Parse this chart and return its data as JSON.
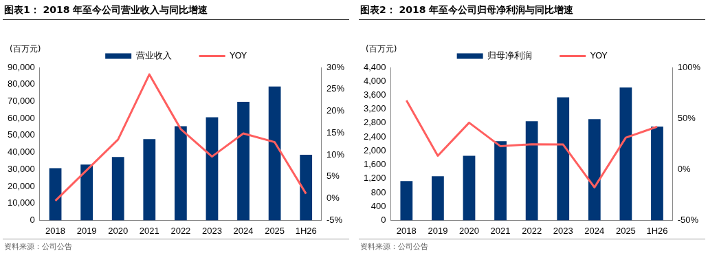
{
  "chart_data": [
    {
      "type": "bar",
      "title": "图表1：  2018 年至今公司营业收入与同比增速",
      "ylabel": "(百万元)",
      "annotations": [
        "资料来源：公司公告"
      ],
      "categories": [
        "2018",
        "2019",
        "2020",
        "2021",
        "2022",
        "2023",
        "2024",
        "2025",
        "1H26"
      ],
      "series": [
        {
          "name": "营业收入",
          "color": "#003676",
          "values": [
            30700,
            32800,
            37300,
            47800,
            55400,
            60700,
            69800,
            78800,
            38600
          ]
        },
        {
          "name": "YOY",
          "type": "line",
          "axis": "y2",
          "color": "#ff5f5f",
          "values": [
            -0.5,
            6.5,
            13.5,
            28.4,
            15.9,
            9.6,
            14.9,
            12.9,
            1.1
          ]
        }
      ],
      "ylim": [
        0,
        90000
      ],
      "yticks": [
        {
          "value": 0,
          "label": "0"
        },
        {
          "value": 10000,
          "label": "10,000"
        },
        {
          "value": 20000,
          "label": "20,000"
        },
        {
          "value": 30000,
          "label": "30,000"
        },
        {
          "value": 40000,
          "label": "40,000"
        },
        {
          "value": 50000,
          "label": "50,000"
        },
        {
          "value": 60000,
          "label": "60,000"
        },
        {
          "value": 70000,
          "label": "70,000"
        },
        {
          "value": 80000,
          "label": "80,000"
        },
        {
          "value": 90000,
          "label": "90,000"
        }
      ],
      "y2lim": [
        -5,
        30
      ],
      "y2ticks": [
        {
          "value": -5,
          "label": "-5%"
        },
        {
          "value": 0,
          "label": "0%"
        },
        {
          "value": 5,
          "label": "5%"
        },
        {
          "value": 10,
          "label": "10%"
        },
        {
          "value": 15,
          "label": "15%"
        },
        {
          "value": 20,
          "label": "20%"
        },
        {
          "value": 25,
          "label": "25%"
        },
        {
          "value": 30,
          "label": "30%"
        }
      ],
      "grid": false,
      "legend": "top",
      "marker": "none",
      "line_style": "solid"
    },
    {
      "type": "bar",
      "title": "图表2：  2018 年至今公司归母净利润与同比增速",
      "ylabel": "(百万元)",
      "annotations": [
        "资料来源：公司公告"
      ],
      "categories": [
        "2018",
        "2019",
        "2020",
        "2021",
        "2022",
        "2023",
        "2024",
        "2025",
        "1H26"
      ],
      "series": [
        {
          "name": "归母净利润",
          "color": "#003676",
          "values": [
            1130,
            1270,
            1860,
            2280,
            2850,
            3540,
            2910,
            3820,
            2700
          ]
        },
        {
          "name": "YOY",
          "type": "line",
          "axis": "y2",
          "color": "#ff5f5f",
          "values": [
            67.6,
            13.3,
            45.8,
            22.7,
            24.7,
            24.4,
            -17.6,
            31.1,
            41.8
          ]
        }
      ],
      "ylim": [
        0,
        4400
      ],
      "yticks": [
        {
          "value": 0,
          "label": "0"
        },
        {
          "value": 400,
          "label": "400"
        },
        {
          "value": 800,
          "label": "800"
        },
        {
          "value": 1200,
          "label": "1,200"
        },
        {
          "value": 1600,
          "label": "1,600"
        },
        {
          "value": 2000,
          "label": "2,000"
        },
        {
          "value": 2400,
          "label": "2,400"
        },
        {
          "value": 2800,
          "label": "2,800"
        },
        {
          "value": 3200,
          "label": "3,200"
        },
        {
          "value": 3600,
          "label": "3,600"
        },
        {
          "value": 4000,
          "label": "4,000"
        },
        {
          "value": 4400,
          "label": "4,400"
        }
      ],
      "y2lim": [
        -50,
        100
      ],
      "y2ticks": [
        {
          "value": -50,
          "label": "-50%"
        },
        {
          "value": 0,
          "label": "0%"
        },
        {
          "value": 50,
          "label": "50%"
        },
        {
          "value": 100,
          "label": "100%"
        }
      ],
      "grid": false,
      "legend": "top",
      "marker": "none",
      "line_style": "solid"
    }
  ]
}
